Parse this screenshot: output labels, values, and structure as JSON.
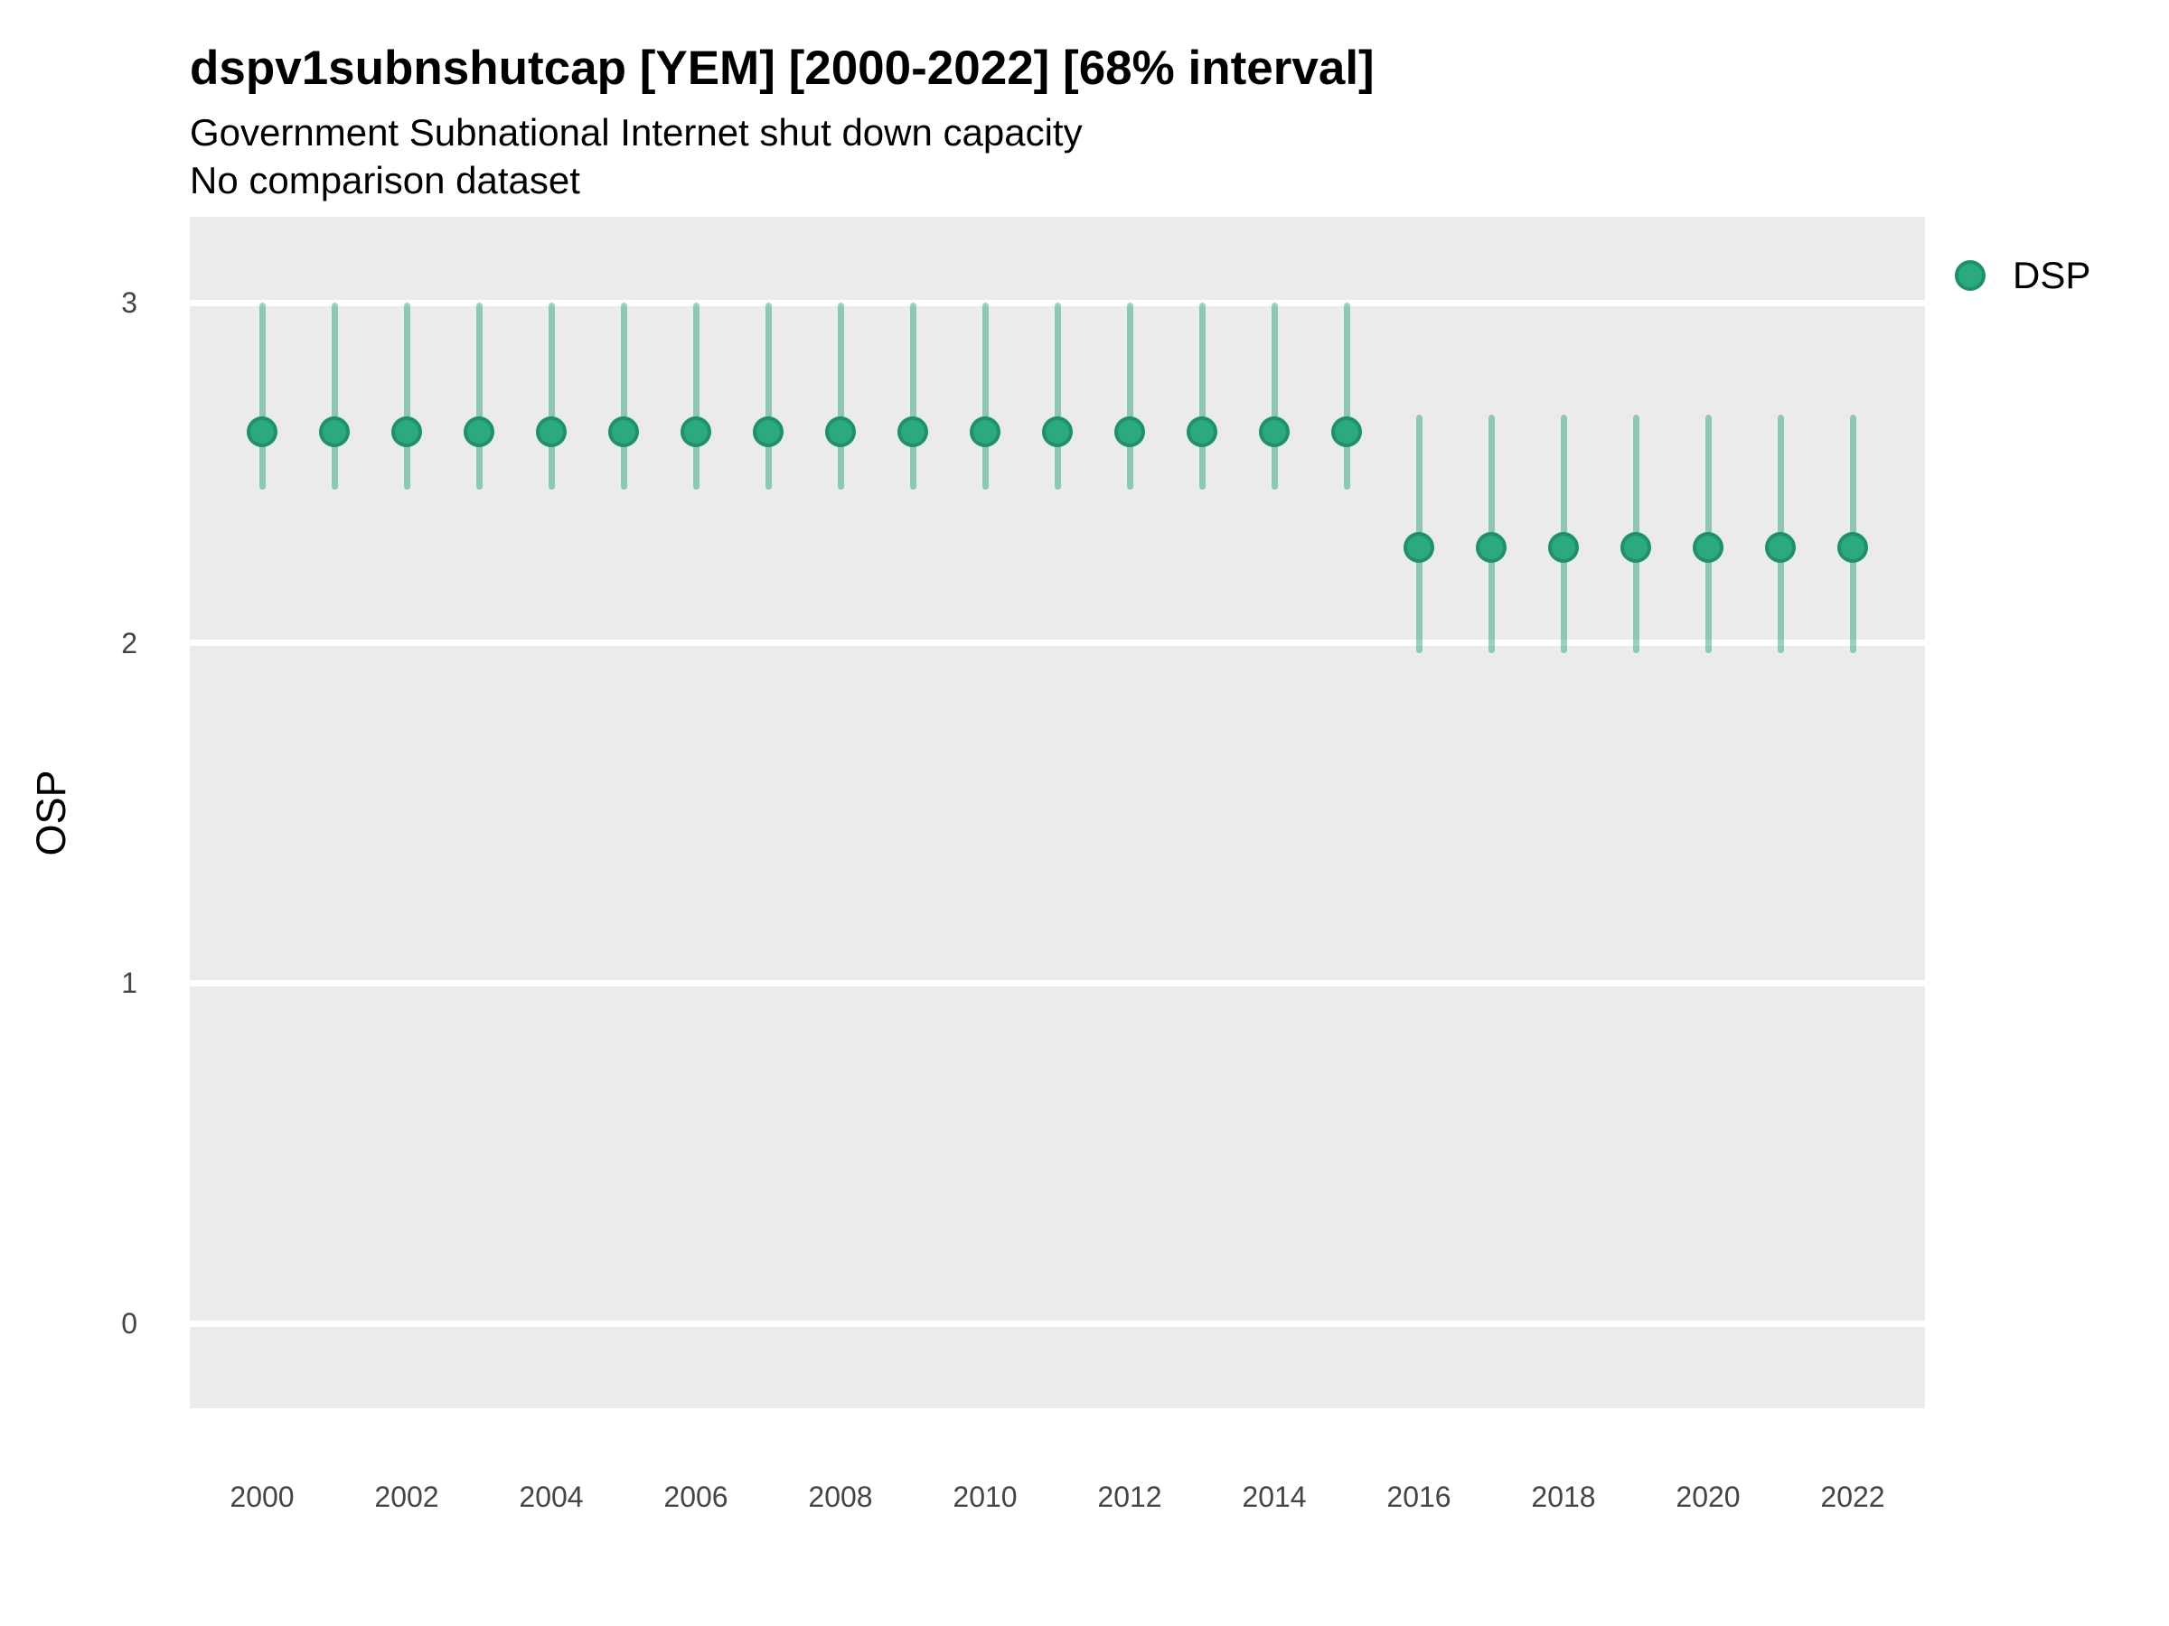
{
  "header": {
    "title": "dspv1subnshutcap [YEM] [2000-2022] [68% interval]",
    "subtitle": "Government Subnational Internet shut down capacity",
    "comparison_note": "No comparison dataset"
  },
  "legend": {
    "items": [
      {
        "label": "DSP",
        "color": "#2BA97F"
      }
    ]
  },
  "axes": {
    "y_title": "OSP",
    "y_ticks": [
      "0",
      "1",
      "2",
      "3"
    ],
    "x_ticks": [
      "2000",
      "2002",
      "2004",
      "2006",
      "2008",
      "2010",
      "2012",
      "2014",
      "2016",
      "2018",
      "2020",
      "2022"
    ]
  },
  "colors": {
    "point_fill": "#2BA97F",
    "point_stroke": "#1F9166",
    "interval_bar": "rgba(27,158,119,0.45)",
    "panel_background": "#EBEBEB",
    "gridline": "#FFFFFF",
    "tick_text": "#444444"
  },
  "chart_data": {
    "type": "pointrange",
    "title": "dspv1subnshutcap [YEM] [2000-2022] [68% interval]",
    "subtitle": "Government Subnational Internet shut down capacity",
    "note": "No comparison dataset",
    "xlabel": "",
    "ylabel": "OSP",
    "interval": "68%",
    "legend_position": "right-top",
    "grid": "horizontal-major-only",
    "xlim": [
      1999,
      2023
    ],
    "ylim": [
      -0.25,
      3.25
    ],
    "series": [
      {
        "name": "DSP",
        "points": [
          {
            "year": 2000,
            "est": 2.62,
            "lo": 2.45,
            "hi": 3.0
          },
          {
            "year": 2001,
            "est": 2.62,
            "lo": 2.45,
            "hi": 3.0
          },
          {
            "year": 2002,
            "est": 2.62,
            "lo": 2.45,
            "hi": 3.0
          },
          {
            "year": 2003,
            "est": 2.62,
            "lo": 2.45,
            "hi": 3.0
          },
          {
            "year": 2004,
            "est": 2.62,
            "lo": 2.45,
            "hi": 3.0
          },
          {
            "year": 2005,
            "est": 2.62,
            "lo": 2.45,
            "hi": 3.0
          },
          {
            "year": 2006,
            "est": 2.62,
            "lo": 2.45,
            "hi": 3.0
          },
          {
            "year": 2007,
            "est": 2.62,
            "lo": 2.45,
            "hi": 3.0
          },
          {
            "year": 2008,
            "est": 2.62,
            "lo": 2.45,
            "hi": 3.0
          },
          {
            "year": 2009,
            "est": 2.62,
            "lo": 2.45,
            "hi": 3.0
          },
          {
            "year": 2010,
            "est": 2.62,
            "lo": 2.45,
            "hi": 3.0
          },
          {
            "year": 2011,
            "est": 2.62,
            "lo": 2.45,
            "hi": 3.0
          },
          {
            "year": 2012,
            "est": 2.62,
            "lo": 2.45,
            "hi": 3.0
          },
          {
            "year": 2013,
            "est": 2.62,
            "lo": 2.45,
            "hi": 3.0
          },
          {
            "year": 2014,
            "est": 2.62,
            "lo": 2.45,
            "hi": 3.0
          },
          {
            "year": 2015,
            "est": 2.62,
            "lo": 2.45,
            "hi": 3.0
          },
          {
            "year": 2016,
            "est": 2.28,
            "lo": 1.97,
            "hi": 2.67
          },
          {
            "year": 2017,
            "est": 2.28,
            "lo": 1.97,
            "hi": 2.67
          },
          {
            "year": 2018,
            "est": 2.28,
            "lo": 1.97,
            "hi": 2.67
          },
          {
            "year": 2019,
            "est": 2.28,
            "lo": 1.97,
            "hi": 2.67
          },
          {
            "year": 2020,
            "est": 2.28,
            "lo": 1.97,
            "hi": 2.67
          },
          {
            "year": 2021,
            "est": 2.28,
            "lo": 1.97,
            "hi": 2.67
          },
          {
            "year": 2022,
            "est": 2.28,
            "lo": 1.97,
            "hi": 2.67
          }
        ]
      }
    ]
  }
}
